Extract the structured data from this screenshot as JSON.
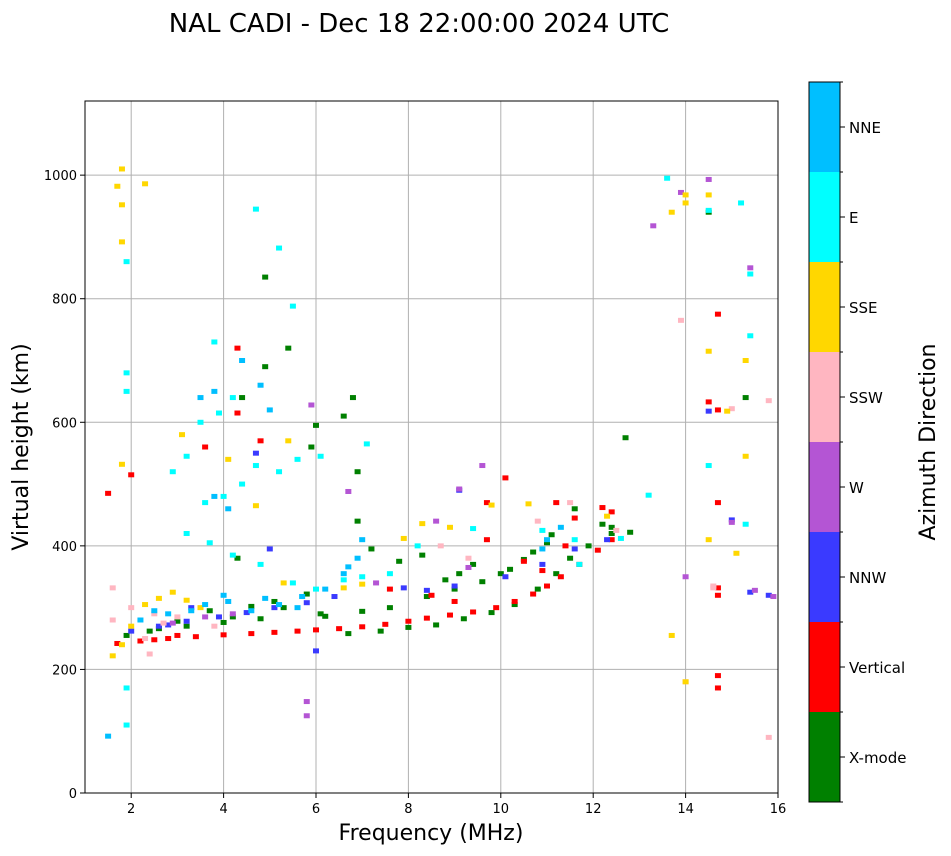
{
  "chart_data": {
    "type": "scatter",
    "title": "NAL CADI - Dec 18 22:00:00 2024 UTC",
    "xlabel": "Frequency (MHz)",
    "ylabel": "Virtual height (km)",
    "xlim": [
      1,
      16
    ],
    "ylim": [
      0,
      1120
    ],
    "xticks": [
      "2",
      "4",
      "6",
      "8",
      "10",
      "12",
      "14",
      "16"
    ],
    "yticks": [
      "0",
      "200",
      "400",
      "600",
      "800",
      "1000"
    ],
    "grid": true,
    "colorbar": {
      "label": "Azimuth Direction",
      "categories": [
        "X-mode",
        "Vertical",
        "NNW",
        "W",
        "SSW",
        "SSE",
        "E",
        "NNE"
      ],
      "colors": [
        "#008000",
        "#ff0000",
        "#3a3aff",
        "#b455d4",
        "#ffb6c1",
        "#ffd700",
        "#00ffff",
        "#00bfff"
      ]
    },
    "series": [
      {
        "name": "X-mode",
        "points": [
          [
            1.9,
            255
          ],
          [
            2.4,
            262
          ],
          [
            3.2,
            270
          ],
          [
            4.0,
            276
          ],
          [
            4.8,
            282
          ],
          [
            5.3,
            300
          ],
          [
            5.8,
            322
          ],
          [
            6.7,
            258
          ],
          [
            7.4,
            262
          ],
          [
            8.0,
            268
          ],
          [
            8.6,
            272
          ],
          [
            9.2,
            282
          ],
          [
            9.8,
            292
          ],
          [
            10.3,
            305
          ],
          [
            10.8,
            330
          ],
          [
            11.2,
            355
          ],
          [
            11.5,
            380
          ],
          [
            11.9,
            400
          ],
          [
            12.4,
            420
          ],
          [
            6.2,
            286
          ],
          [
            7.0,
            294
          ],
          [
            7.6,
            300
          ],
          [
            8.4,
            318
          ],
          [
            9.0,
            330
          ],
          [
            9.6,
            342
          ],
          [
            10.2,
            362
          ],
          [
            10.7,
            390
          ],
          [
            11.0,
            405
          ],
          [
            7.8,
            375
          ],
          [
            8.3,
            385
          ],
          [
            9.4,
            370
          ],
          [
            10.0,
            355
          ],
          [
            10.5,
            378
          ],
          [
            11.1,
            418
          ],
          [
            12.2,
            435
          ],
          [
            12.7,
            575
          ],
          [
            6.0,
            595
          ],
          [
            6.6,
            610
          ],
          [
            6.8,
            640
          ],
          [
            4.4,
            640
          ],
          [
            4.9,
            690
          ],
          [
            5.4,
            720
          ],
          [
            4.9,
            835
          ],
          [
            3.7,
            295
          ],
          [
            4.6,
            302
          ],
          [
            5.1,
            310
          ],
          [
            3.0,
            278
          ],
          [
            2.6,
            266
          ],
          [
            4.2,
            285
          ],
          [
            8.8,
            345
          ],
          [
            9.1,
            355
          ],
          [
            7.2,
            395
          ],
          [
            6.9,
            440
          ],
          [
            6.9,
            520
          ],
          [
            5.9,
            560
          ],
          [
            4.3,
            380
          ],
          [
            11.6,
            460
          ],
          [
            15.3,
            640
          ],
          [
            14.5,
            940
          ],
          [
            6.1,
            290
          ],
          [
            12.4,
            430
          ],
          [
            12.8,
            422
          ]
        ]
      },
      {
        "name": "Vertical",
        "points": [
          [
            1.7,
            242
          ],
          [
            2.2,
            246
          ],
          [
            2.8,
            250
          ],
          [
            3.4,
            253
          ],
          [
            4.0,
            256
          ],
          [
            4.6,
            258
          ],
          [
            5.1,
            260
          ],
          [
            5.6,
            262
          ],
          [
            6.0,
            264
          ],
          [
            6.5,
            266
          ],
          [
            7.0,
            269
          ],
          [
            7.5,
            273
          ],
          [
            8.0,
            278
          ],
          [
            8.4,
            283
          ],
          [
            8.9,
            288
          ],
          [
            9.4,
            293
          ],
          [
            9.9,
            300
          ],
          [
            10.3,
            310
          ],
          [
            10.7,
            322
          ],
          [
            11.0,
            335
          ],
          [
            11.3,
            350
          ],
          [
            11.7,
            370
          ],
          [
            12.1,
            393
          ],
          [
            12.4,
            410
          ],
          [
            3.0,
            255
          ],
          [
            2.5,
            248
          ],
          [
            9.7,
            470
          ],
          [
            10.1,
            510
          ],
          [
            11.2,
            470
          ],
          [
            12.2,
            462
          ],
          [
            12.4,
            455
          ],
          [
            11.6,
            445
          ],
          [
            8.5,
            320
          ],
          [
            9.0,
            310
          ],
          [
            7.6,
            330
          ],
          [
            14.7,
            620
          ],
          [
            14.7,
            470
          ],
          [
            14.7,
            320
          ],
          [
            14.7,
            170
          ],
          [
            14.7,
            775
          ],
          [
            14.5,
            633
          ],
          [
            14.7,
            332
          ],
          [
            14.7,
            190
          ],
          [
            1.5,
            485
          ],
          [
            4.3,
            615
          ],
          [
            3.6,
            560
          ],
          [
            2.0,
            515
          ],
          [
            4.3,
            720
          ],
          [
            4.8,
            570
          ],
          [
            10.5,
            375
          ],
          [
            10.9,
            360
          ],
          [
            9.7,
            410
          ],
          [
            11.4,
            400
          ]
        ]
      },
      {
        "name": "NNW",
        "points": [
          [
            2.0,
            262
          ],
          [
            2.6,
            270
          ],
          [
            3.2,
            278
          ],
          [
            3.9,
            285
          ],
          [
            4.5,
            292
          ],
          [
            5.1,
            300
          ],
          [
            5.8,
            308
          ],
          [
            6.4,
            318
          ],
          [
            8.4,
            328
          ],
          [
            9.0,
            335
          ],
          [
            10.1,
            350
          ],
          [
            10.9,
            370
          ],
          [
            11.6,
            395
          ],
          [
            12.3,
            410
          ],
          [
            14.5,
            618
          ],
          [
            15.0,
            442
          ],
          [
            15.4,
            325
          ],
          [
            15.8,
            320
          ],
          [
            4.7,
            550
          ],
          [
            9.1,
            490
          ],
          [
            5.0,
            395
          ],
          [
            3.3,
            300
          ],
          [
            2.8,
            272
          ],
          [
            6.0,
            230
          ],
          [
            7.9,
            332
          ]
        ]
      },
      {
        "name": "W",
        "points": [
          [
            13.3,
            918
          ],
          [
            13.9,
            972
          ],
          [
            14.5,
            993
          ],
          [
            15.4,
            850
          ],
          [
            15.5,
            328
          ],
          [
            15.9,
            318
          ],
          [
            15.0,
            438
          ],
          [
            14.0,
            350
          ],
          [
            5.9,
            628
          ],
          [
            9.6,
            530
          ],
          [
            9.1,
            492
          ],
          [
            6.7,
            488
          ],
          [
            5.8,
            148
          ],
          [
            5.8,
            125
          ],
          [
            4.2,
            290
          ],
          [
            3.6,
            285
          ],
          [
            2.9,
            275
          ],
          [
            8.6,
            440
          ],
          [
            9.3,
            365
          ],
          [
            7.3,
            340
          ]
        ]
      },
      {
        "name": "SSW",
        "points": [
          [
            1.6,
            280
          ],
          [
            2.0,
            300
          ],
          [
            2.5,
            290
          ],
          [
            2.7,
            275
          ],
          [
            3.0,
            285
          ],
          [
            2.3,
            250
          ],
          [
            1.6,
            332
          ],
          [
            13.9,
            765
          ],
          [
            15.0,
            622
          ],
          [
            15.8,
            635
          ],
          [
            15.8,
            90
          ],
          [
            14.0,
            180
          ],
          [
            14.6,
            332
          ],
          [
            14.6,
            335
          ],
          [
            8.7,
            400
          ],
          [
            9.3,
            380
          ],
          [
            10.8,
            440
          ],
          [
            11.5,
            470
          ],
          [
            12.5,
            425
          ],
          [
            3.8,
            270
          ],
          [
            2.4,
            225
          ]
        ]
      },
      {
        "name": "SSE",
        "points": [
          [
            1.6,
            222
          ],
          [
            1.8,
            240
          ],
          [
            2.0,
            270
          ],
          [
            2.3,
            305
          ],
          [
            2.6,
            315
          ],
          [
            2.9,
            325
          ],
          [
            3.2,
            312
          ],
          [
            3.5,
            300
          ],
          [
            1.8,
            1010
          ],
          [
            1.7,
            982
          ],
          [
            2.3,
            986
          ],
          [
            1.8,
            952
          ],
          [
            1.8,
            892
          ],
          [
            1.8,
            532
          ],
          [
            13.7,
            940
          ],
          [
            14.0,
            955
          ],
          [
            14.0,
            968
          ],
          [
            14.5,
            968
          ],
          [
            14.5,
            715
          ],
          [
            14.9,
            618
          ],
          [
            15.3,
            700
          ],
          [
            15.3,
            545
          ],
          [
            15.1,
            388
          ],
          [
            14.5,
            410
          ],
          [
            13.7,
            255
          ],
          [
            14.0,
            180
          ],
          [
            7.0,
            338
          ],
          [
            6.6,
            332
          ],
          [
            7.9,
            412
          ],
          [
            8.3,
            436
          ],
          [
            8.9,
            430
          ],
          [
            9.8,
            466
          ],
          [
            10.6,
            468
          ],
          [
            3.1,
            580
          ],
          [
            4.1,
            540
          ],
          [
            5.4,
            570
          ],
          [
            4.7,
            465
          ],
          [
            12.3,
            448
          ],
          [
            5.3,
            340
          ]
        ]
      },
      {
        "name": "E",
        "points": [
          [
            2.9,
            520
          ],
          [
            3.2,
            545
          ],
          [
            3.5,
            600
          ],
          [
            3.9,
            615
          ],
          [
            4.2,
            640
          ],
          [
            3.6,
            470
          ],
          [
            4.0,
            480
          ],
          [
            4.4,
            500
          ],
          [
            4.7,
            530
          ],
          [
            5.2,
            520
          ],
          [
            5.6,
            540
          ],
          [
            3.2,
            420
          ],
          [
            3.7,
            405
          ],
          [
            4.2,
            385
          ],
          [
            4.8,
            370
          ],
          [
            5.5,
            340
          ],
          [
            6.0,
            330
          ],
          [
            6.6,
            345
          ],
          [
            7.0,
            350
          ],
          [
            7.6,
            355
          ],
          [
            13.6,
            995
          ],
          [
            14.5,
            943
          ],
          [
            15.2,
            955
          ],
          [
            15.4,
            840
          ],
          [
            15.4,
            740
          ],
          [
            14.5,
            530
          ],
          [
            15.3,
            435
          ],
          [
            13.2,
            482
          ],
          [
            4.7,
            945
          ],
          [
            5.2,
            882
          ],
          [
            3.8,
            730
          ],
          [
            5.5,
            788
          ],
          [
            1.9,
            860
          ],
          [
            1.9,
            680
          ],
          [
            1.9,
            650
          ],
          [
            1.9,
            170
          ],
          [
            1.9,
            110
          ],
          [
            10.9,
            425
          ],
          [
            11.6,
            410
          ],
          [
            12.6,
            412
          ],
          [
            11.7,
            370
          ],
          [
            9.4,
            428
          ],
          [
            8.2,
            400
          ],
          [
            7.1,
            565
          ],
          [
            6.1,
            545
          ]
        ]
      },
      {
        "name": "NNE",
        "points": [
          [
            2.2,
            280
          ],
          [
            2.5,
            295
          ],
          [
            2.8,
            290
          ],
          [
            3.3,
            295
          ],
          [
            3.6,
            305
          ],
          [
            4.1,
            310
          ],
          [
            4.6,
            295
          ],
          [
            5.2,
            305
          ],
          [
            5.7,
            318
          ],
          [
            6.2,
            330
          ],
          [
            6.6,
            355
          ],
          [
            6.9,
            380
          ],
          [
            7.0,
            410
          ],
          [
            6.7,
            366
          ],
          [
            3.5,
            640
          ],
          [
            3.8,
            650
          ],
          [
            4.4,
            700
          ],
          [
            4.8,
            660
          ],
          [
            5.0,
            620
          ],
          [
            3.8,
            480
          ],
          [
            4.1,
            460
          ],
          [
            1.5,
            92
          ],
          [
            11.0,
            410
          ],
          [
            11.3,
            430
          ],
          [
            10.9,
            395
          ],
          [
            5.6,
            300
          ],
          [
            4.9,
            315
          ],
          [
            4.0,
            320
          ]
        ]
      }
    ]
  }
}
